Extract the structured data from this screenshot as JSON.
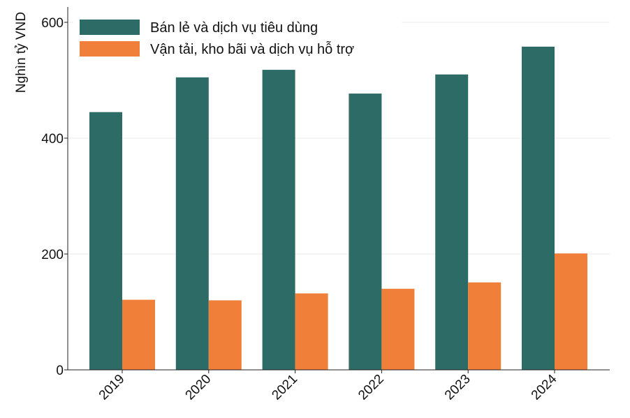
{
  "chart_data": {
    "type": "bar",
    "title": "",
    "xlabel": "",
    "ylabel": "Nghìn tỷ VND",
    "categories": [
      "2019",
      "2020",
      "2021",
      "2022",
      "2023",
      "2024"
    ],
    "series": [
      {
        "name": "Bán lẻ và dịch vụ tiêu dùng",
        "color": "#2d6b66",
        "values": [
          445,
          505,
          518,
          477,
          510,
          558
        ]
      },
      {
        "name": "Vận tải, kho bãi và dịch vụ hỗ trợ",
        "color": "#f07f3a",
        "values": [
          121,
          120,
          132,
          140,
          151,
          201
        ]
      }
    ],
    "ylim": [
      0,
      600
    ],
    "yticks": [
      0,
      200,
      400,
      600
    ],
    "grid": "horizontal",
    "legend_position": "top-left"
  }
}
